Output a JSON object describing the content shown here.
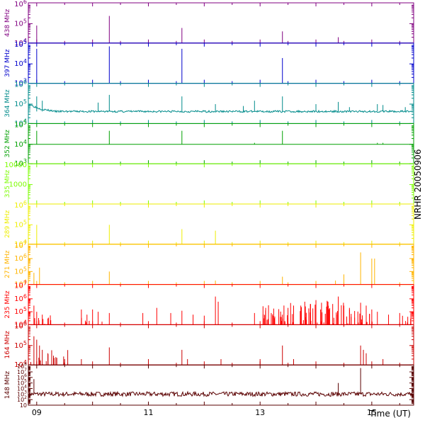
{
  "window": {
    "station_label": "NRHR 20050906"
  },
  "chart_data": {
    "type": "line",
    "title": "NRHR 20050906",
    "xlabel": "Time (UT)",
    "x_range_hours": [
      8.85,
      15.75
    ],
    "x_ticks": [
      {
        "value": 9,
        "label": "09"
      },
      {
        "value": 11,
        "label": "11"
      },
      {
        "value": 13,
        "label": "13"
      },
      {
        "value": 15,
        "label": "15"
      }
    ],
    "panels": [
      {
        "name": "438 MHz",
        "color": "#800080",
        "scale": "log",
        "ylim": [
          10000,
          1000000
        ],
        "y_ticks": [
          {
            "value": 10000,
            "label": "10^4"
          },
          {
            "value": 100000,
            "label": "10^5"
          },
          {
            "value": 1000000,
            "label": "10^6"
          }
        ],
        "baseline": 10000,
        "spikes": [
          [
            9.0,
            80000
          ],
          [
            10.3,
            250000
          ],
          [
            11.6,
            60000
          ],
          [
            13.4,
            40000
          ],
          [
            14.4,
            20000
          ]
        ]
      },
      {
        "name": "397 MHz",
        "color": "#0000cc",
        "scale": "log",
        "ylim": [
          1000,
          100000
        ],
        "y_ticks": [
          {
            "value": 1000,
            "label": "10^3"
          },
          {
            "value": 10000,
            "label": "10^4"
          },
          {
            "value": 100000,
            "label": "10^5"
          }
        ],
        "baseline": 1000,
        "spikes": [
          [
            9.0,
            60000
          ],
          [
            10.3,
            80000
          ],
          [
            11.6,
            60000
          ],
          [
            13.4,
            20000
          ]
        ]
      },
      {
        "name": "364 MHz",
        "color": "#008b8b",
        "scale": "log",
        "ylim": [
          10000,
          1000000
        ],
        "y_ticks": [
          {
            "value": 10000,
            "label": "10^4"
          },
          {
            "value": 100000,
            "label": "10^5"
          },
          {
            "value": 1000000,
            "label": "10^6"
          }
        ],
        "baseline": 42000,
        "noise": 0.1,
        "noise_seed": 3,
        "start_value": 110000,
        "start_decay_hours": 0.15,
        "spikes": [
          [
            9.0,
            250000
          ],
          [
            9.1,
            150000
          ],
          [
            10.1,
            120000
          ],
          [
            10.3,
            300000
          ],
          [
            11.6,
            250000
          ],
          [
            12.2,
            100000
          ],
          [
            12.7,
            80000
          ],
          [
            12.9,
            150000
          ],
          [
            13.4,
            250000
          ],
          [
            14.0,
            100000
          ],
          [
            14.4,
            130000
          ],
          [
            14.6,
            70000
          ],
          [
            15.1,
            100000
          ],
          [
            15.2,
            90000
          ],
          [
            15.6,
            70000
          ]
        ]
      },
      {
        "name": "352 MHz",
        "color": "#00a000",
        "scale": "log",
        "ylim": [
          1000,
          100000
        ],
        "y_ticks": [
          {
            "value": 1000,
            "label": "10^3"
          },
          {
            "value": 10000,
            "label": "10^4"
          },
          {
            "value": 100000,
            "label": "10^5"
          }
        ],
        "baseline": 10000,
        "spikes": [
          [
            9.0,
            50000
          ],
          [
            10.3,
            50000
          ],
          [
            11.6,
            50000
          ],
          [
            12.9,
            12000
          ],
          [
            13.4,
            50000
          ],
          [
            15.1,
            12000
          ],
          [
            15.2,
            12000
          ]
        ]
      },
      {
        "name": "335 MHz",
        "color": "#7cfc00",
        "scale": "log",
        "ylim": [
          100,
          10000
        ],
        "y_ticks": [
          {
            "value": 1000,
            "label": "1000"
          },
          {
            "value": 10000,
            "label": "10000"
          }
        ],
        "baseline": null,
        "spikes": []
      },
      {
        "name": "289 MHz",
        "color": "#eeee00",
        "scale": "log",
        "ylim": [
          10000,
          1000000
        ],
        "y_ticks": [
          {
            "value": 10000,
            "label": "10^4"
          },
          {
            "value": 100000,
            "label": "10^5"
          },
          {
            "value": 1000000,
            "label": "10^6"
          }
        ],
        "baseline": 10000,
        "spikes": [
          [
            9.0,
            100000
          ],
          [
            10.3,
            100000
          ],
          [
            11.6,
            60000
          ],
          [
            12.2,
            50000
          ]
        ]
      },
      {
        "name": "271 MHz",
        "color": "#ffb400",
        "scale": "log",
        "ylim": [
          10000,
          10000000
        ],
        "y_ticks": [
          {
            "value": 10000,
            "label": "10^4"
          },
          {
            "value": 100000,
            "label": "10^5"
          },
          {
            "value": 1000000,
            "label": "10^6"
          },
          {
            "value": 10000000,
            "label": "10^7"
          }
        ],
        "baseline": 10000,
        "spikes": [
          [
            8.95,
            80000
          ],
          [
            9.05,
            200000
          ],
          [
            10.3,
            100000
          ],
          [
            12.2,
            20000
          ],
          [
            13.4,
            40000
          ],
          [
            14.35,
            20000
          ],
          [
            14.5,
            60000
          ],
          [
            14.8,
            3000000
          ],
          [
            15.0,
            1000000
          ],
          [
            15.05,
            1000000
          ]
        ]
      },
      {
        "name": "235 MHz",
        "color": "#ff0000",
        "scale": "log",
        "ylim": [
          10000,
          10000000
        ],
        "y_ticks": [
          {
            "value": 10000,
            "label": "10^4"
          },
          {
            "value": 100000,
            "label": "10^5"
          },
          {
            "value": 1000000,
            "label": "10^6"
          },
          {
            "value": 10000000,
            "label": "10^7"
          }
        ],
        "baseline": 10000,
        "spikes": [
          [
            8.95,
            300000
          ],
          [
            9.0,
            100000
          ],
          [
            9.1,
            60000
          ],
          [
            9.2,
            30000
          ],
          [
            9.8,
            150000
          ],
          [
            9.9,
            60000
          ],
          [
            10.0,
            150000
          ],
          [
            10.1,
            100000
          ],
          [
            10.3,
            80000
          ],
          [
            10.9,
            80000
          ],
          [
            11.15,
            200000
          ],
          [
            11.4,
            80000
          ],
          [
            11.6,
            120000
          ],
          [
            11.8,
            60000
          ],
          [
            12.0,
            50000
          ],
          [
            12.2,
            1500000
          ],
          [
            12.25,
            600000
          ],
          [
            12.9,
            80000
          ],
          [
            13.1,
            200000
          ],
          [
            13.2,
            80000
          ],
          [
            13.4,
            60000
          ],
          [
            13.5,
            200000
          ],
          [
            13.6,
            300000
          ],
          [
            13.8,
            600000
          ],
          [
            13.9,
            400000
          ],
          [
            14.0,
            800000
          ],
          [
            14.1,
            500000
          ],
          [
            14.2,
            700000
          ],
          [
            14.3,
            400000
          ],
          [
            14.4,
            1500000
          ],
          [
            14.5,
            300000
          ],
          [
            14.6,
            200000
          ],
          [
            14.8,
            500000
          ],
          [
            14.9,
            300000
          ],
          [
            15.0,
            150000
          ],
          [
            15.1,
            100000
          ],
          [
            15.3,
            60000
          ],
          [
            15.5,
            80000
          ],
          [
            15.7,
            100000
          ]
        ],
        "bursts": [
          [
            8.85,
            9.3,
            12,
            60000
          ],
          [
            9.8,
            10.2,
            10,
            40000
          ],
          [
            13.05,
            14.7,
            90,
            800000
          ],
          [
            14.75,
            15.05,
            14,
            150000
          ],
          [
            15.55,
            15.75,
            6,
            50000
          ]
        ]
      },
      {
        "name": "164 MHz",
        "color": "#cc0000",
        "scale": "log",
        "ylim": [
          10000,
          1000000
        ],
        "y_ticks": [
          {
            "value": 10000,
            "label": "10^4"
          },
          {
            "value": 100000,
            "label": "10^5"
          },
          {
            "value": 1000000,
            "label": "10^6"
          }
        ],
        "baseline": 10000,
        "spikes": [
          [
            8.95,
            300000
          ],
          [
            9.0,
            200000
          ],
          [
            9.05,
            100000
          ],
          [
            9.1,
            60000
          ],
          [
            9.2,
            40000
          ],
          [
            9.3,
            30000
          ],
          [
            9.5,
            20000
          ],
          [
            9.8,
            20000
          ],
          [
            10.3,
            80000
          ],
          [
            11.0,
            20000
          ],
          [
            11.6,
            60000
          ],
          [
            11.7,
            20000
          ],
          [
            12.3,
            20000
          ],
          [
            13.0,
            20000
          ],
          [
            13.4,
            100000
          ],
          [
            13.6,
            20000
          ],
          [
            14.8,
            100000
          ],
          [
            14.85,
            60000
          ],
          [
            14.9,
            40000
          ],
          [
            15.2,
            20000
          ]
        ],
        "bursts": [
          [
            8.85,
            9.6,
            22,
            60000
          ]
        ]
      },
      {
        "name": "148 MHz",
        "color": "#5a0000",
        "scale": "log",
        "ylim": [
          10,
          100000000
        ],
        "y_ticks": [
          {
            "value": 10,
            "label": "10"
          },
          {
            "value": 100,
            "label": "10^2"
          },
          {
            "value": 1000,
            "label": "10^3"
          },
          {
            "value": 10000,
            "label": "10^4"
          },
          {
            "value": 100000,
            "label": "10^5"
          },
          {
            "value": 1000000,
            "label": "10^6"
          },
          {
            "value": 10000000,
            "label": "10^7"
          },
          {
            "value": 100000000,
            "label": "10^8"
          }
        ],
        "baseline": 1000,
        "noise": 0.8,
        "noise_seed": 7,
        "spikes": [
          [
            8.95,
            500000
          ],
          [
            14.4,
            100000
          ],
          [
            14.8,
            50000000
          ]
        ]
      }
    ]
  }
}
